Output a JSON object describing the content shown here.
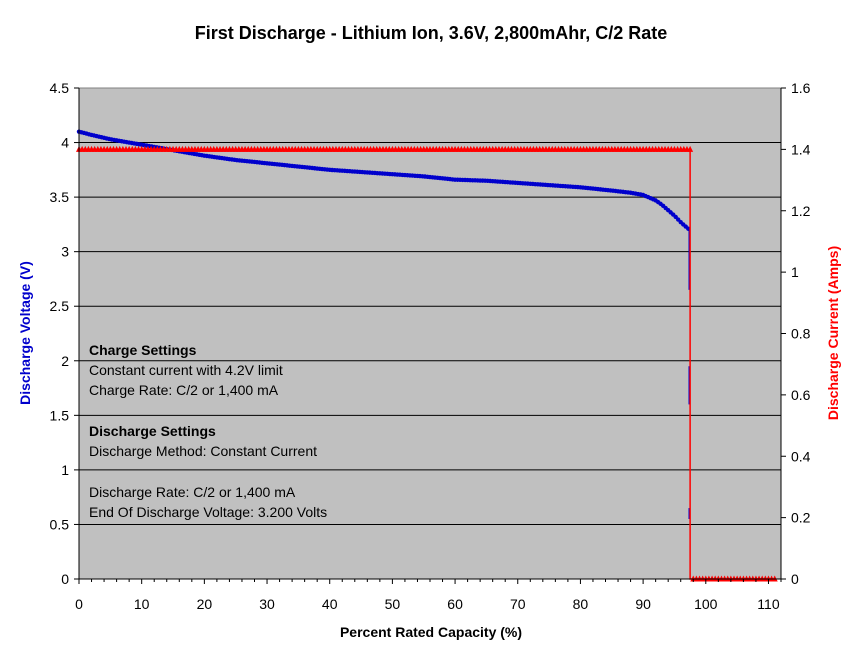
{
  "chart_data": {
    "type": "line",
    "title": "First Discharge - Lithium Ion, 3.6V, 2,800mAhr, C/2 Rate",
    "xlabel": "Percent Rated Capacity (%)",
    "ylabel": "Discharge Voltage (V)",
    "y2label": "Discharge Current (Amps)",
    "xlim": [
      0,
      112
    ],
    "ylim": [
      0,
      4.5
    ],
    "y2lim": [
      0,
      1.6
    ],
    "x_ticks": [
      "0",
      "10",
      "20",
      "30",
      "40",
      "50",
      "60",
      "70",
      "80",
      "90",
      "100",
      "110"
    ],
    "y_ticks": [
      "0",
      "0.5",
      "1",
      "1.5",
      "2",
      "2.5",
      "3",
      "3.5",
      "4",
      "4.5"
    ],
    "y2_ticks": [
      "0",
      "0.2",
      "0.4",
      "0.6",
      "0.8",
      "1",
      "1.2",
      "1.4",
      "1.6"
    ],
    "grid": "horizontal",
    "plot_background": "#c0c0c0",
    "series": [
      {
        "name": "Discharge Voltage (V)",
        "axis": "left",
        "color": "#0000cc",
        "x": [
          0,
          2,
          5,
          10,
          15,
          20,
          25,
          30,
          35,
          40,
          45,
          50,
          55,
          60,
          65,
          70,
          75,
          80,
          85,
          88,
          90,
          92,
          93,
          94,
          95,
          96,
          97,
          97.4
        ],
        "y": [
          4.1,
          4.07,
          4.03,
          3.98,
          3.93,
          3.88,
          3.84,
          3.81,
          3.78,
          3.75,
          3.73,
          3.71,
          3.69,
          3.66,
          3.65,
          3.63,
          3.61,
          3.59,
          3.56,
          3.54,
          3.52,
          3.47,
          3.43,
          3.38,
          3.33,
          3.27,
          3.22,
          3.2
        ]
      },
      {
        "name": "Discharge Current (Amps)",
        "axis": "right",
        "color": "#ff0000",
        "x": [
          0,
          10,
          20,
          30,
          40,
          50,
          60,
          70,
          80,
          90,
          97.5,
          97.5,
          100,
          105,
          110,
          111
        ],
        "y": [
          1.4,
          1.4,
          1.4,
          1.4,
          1.4,
          1.4,
          1.4,
          1.4,
          1.4,
          1.4,
          1.4,
          0,
          0,
          0,
          0,
          0
        ]
      }
    ],
    "voltage_drop": {
      "x": 97.4,
      "segments": [
        [
          3.2,
          2.65
        ],
        [
          1.95,
          1.6
        ],
        [
          0.65,
          0.55
        ]
      ]
    },
    "annotations": {
      "charge_heading": "Charge Settings",
      "charge_line1": "Constant current with 4.2V limit",
      "charge_line2": "Charge Rate: C/2 or 1,400 mA",
      "discharge_heading": "Discharge Settings",
      "discharge_line1": "Discharge Method: Constant Current",
      "discharge_line2": "Discharge Rate: C/2 or 1,400 mA",
      "discharge_line3": "End Of Discharge Voltage: 3.200 Volts"
    }
  }
}
